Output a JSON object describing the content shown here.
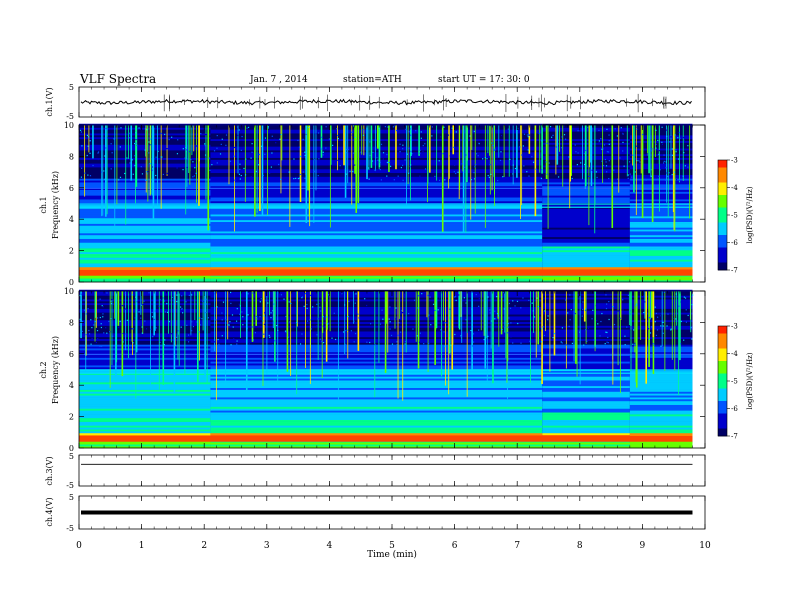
{
  "header": {
    "title": "VLF  Spectra",
    "date": "Jan.  7  , 2014",
    "station": "station=ATH",
    "start": "start  UT  =   17: 30: 0"
  },
  "chart_data": [
    {
      "type": "line",
      "name": "ch1-waveform",
      "ylabel": "ch.1(V)",
      "ylim": [
        -5,
        5
      ],
      "yticks": [
        "5",
        "-5"
      ],
      "x_min": [
        0,
        9.8
      ],
      "baseline_v": 0,
      "noise_amplitude_v": 0.6
    },
    {
      "type": "heatmap",
      "name": "ch1-spectrogram",
      "ylabel": "ch.1\nFrequency (kHz)",
      "ylabel_ch": "ch.1",
      "ylabel_freq": "Frequency (kHz)",
      "ylim": [
        0,
        10
      ],
      "yticks": [
        "0",
        "2",
        "4",
        "6",
        "8",
        "10"
      ],
      "colorbar": {
        "label": "log(PSD) (V²/Hz)",
        "label_text": "log(PSD)(V²/Hz)",
        "ticks": [
          "-3",
          "-4",
          "-5",
          "-6",
          "-7"
        ],
        "range": [
          -7,
          -3
        ]
      },
      "segments_min": [
        2.1,
        7.4,
        8.8
      ]
    },
    {
      "type": "heatmap",
      "name": "ch2-spectrogram",
      "ylabel_ch": "ch.2",
      "ylabel_freq": "Frequency (kHz)",
      "ylim": [
        0,
        10
      ],
      "yticks": [
        "0",
        "2",
        "4",
        "6",
        "8",
        "10"
      ],
      "colorbar": {
        "label_text": "log(PSD)(V²/Hz)",
        "ticks": [
          "-3",
          "-4",
          "-5",
          "-6",
          "-7"
        ],
        "range": [
          -7,
          -3
        ]
      },
      "segments_min": [
        2.1,
        7.4,
        8.8
      ]
    },
    {
      "type": "line",
      "name": "ch3-waveform",
      "ylabel": "ch.3(V)",
      "ylim": [
        -5,
        5
      ],
      "yticks": [
        "5",
        "-5"
      ],
      "baseline_v": 2.0
    },
    {
      "type": "line",
      "name": "ch4-waveform",
      "ylabel": "ch.4(V)",
      "ylim": [
        -5,
        5
      ],
      "yticks": [
        "5",
        "-5"
      ],
      "baseline_v": 0
    }
  ],
  "xaxis": {
    "label": "Time  (min)",
    "ticks": [
      "0",
      "1",
      "2",
      "3",
      "4",
      "5",
      "6",
      "7",
      "8",
      "9",
      "10"
    ],
    "range": [
      0,
      10
    ]
  },
  "colors": {
    "cmap": [
      "#000066",
      "#0000cc",
      "#0055ff",
      "#00ccff",
      "#00ff88",
      "#66ff00",
      "#ffee00",
      "#ff8800",
      "#ff2200",
      "#ffffff"
    ]
  }
}
